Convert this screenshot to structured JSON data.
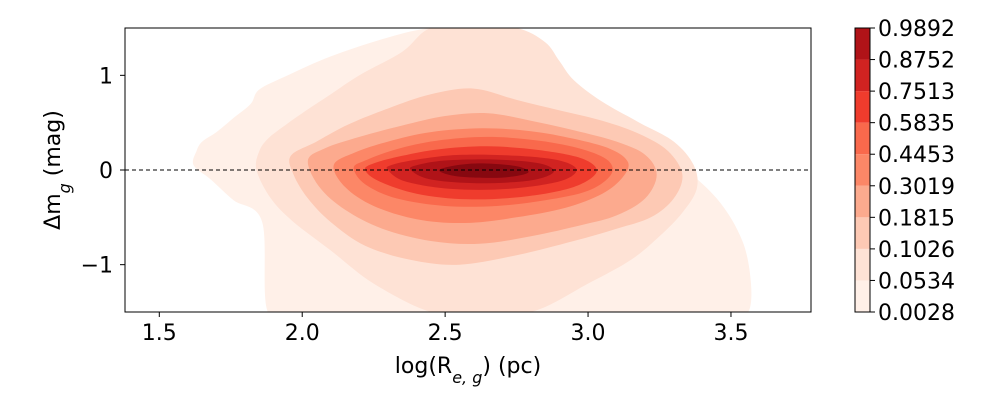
{
  "chart_data": {
    "type": "contour",
    "xlabel": "log(R_{e, g}) (pc)",
    "ylabel": "Δm_g (mag)",
    "xlim": [
      1.38,
      3.78
    ],
    "ylim": [
      -1.5,
      1.5
    ],
    "x_ticks": [
      1.5,
      2.0,
      2.5,
      3.0,
      3.5
    ],
    "x_tick_labels": [
      "1.5",
      "2.0",
      "2.5",
      "3.0",
      "3.5"
    ],
    "y_ticks": [
      1,
      0,
      -1
    ],
    "y_tick_labels": [
      "1",
      "0",
      "−1"
    ],
    "reference_line": {
      "y": 0,
      "style": "dashed"
    },
    "colorbar": {
      "colormap": "Reds",
      "levels": [
        "0.0028",
        "0.0534",
        "0.1026",
        "0.1815",
        "0.3019",
        "0.4453",
        "0.5835",
        "0.7513",
        "0.8752",
        "0.9892"
      ],
      "colors": [
        "#fff0e8",
        "#fee2d5",
        "#fdc9b4",
        "#fcaa8e",
        "#fc8767",
        "#f9694c",
        "#ef3c2d",
        "#d12321",
        "#b01318",
        "#870810"
      ]
    },
    "contours": [
      {
        "level": "0.0028",
        "x": [
          1.63,
          1.62,
          1.68,
          1.76,
          1.86,
          1.88,
          2.0,
          2.2,
          2.4,
          2.5,
          2.7,
          2.95,
          3.05,
          3.2,
          3.24,
          3.34,
          3.44,
          3.5,
          3.56,
          3.57,
          3.54,
          3.45,
          3.3,
          3.1,
          2.9,
          2.75,
          2.6,
          2.45,
          2.3,
          2.1,
          1.95,
          1.85,
          1.82,
          1.76,
          1.7,
          1.65
        ],
        "y": [
          0.2,
          0.05,
          -0.1,
          -0.32,
          -0.55,
          -1.5,
          -1.5,
          -1.5,
          -1.5,
          -1.5,
          -1.5,
          -1.5,
          -1.5,
          -1.5,
          -1.5,
          -1.5,
          -1.5,
          -1.5,
          -1.5,
          -1.2,
          -0.75,
          -0.3,
          0.1,
          0.5,
          0.95,
          1.3,
          1.5,
          1.5,
          1.4,
          1.2,
          1.0,
          0.85,
          0.7,
          0.55,
          0.4,
          0.3
        ]
      },
      {
        "level": "0.0534",
        "x": [
          1.85,
          1.84,
          1.89,
          1.97,
          2.1,
          2.25,
          2.45,
          2.6,
          2.8,
          3.0,
          3.15,
          3.25,
          3.33,
          3.38,
          3.37,
          3.3,
          3.18,
          3.05,
          2.95,
          2.9,
          2.85,
          2.75,
          2.6,
          2.45,
          2.35,
          2.2,
          2.1,
          2.0,
          1.93,
          1.88
        ],
        "y": [
          0.2,
          0.0,
          -0.3,
          -0.55,
          -0.85,
          -1.2,
          -1.5,
          -1.5,
          -1.5,
          -1.2,
          -0.95,
          -0.7,
          -0.45,
          -0.2,
          0.05,
          0.3,
          0.5,
          0.72,
          0.95,
          1.15,
          1.35,
          1.5,
          1.5,
          1.5,
          1.25,
          1.0,
          0.8,
          0.6,
          0.45,
          0.33
        ]
      },
      {
        "level": "0.1026",
        "x": [
          1.96,
          1.97,
          2.02,
          2.1,
          2.22,
          2.38,
          2.55,
          2.75,
          2.95,
          3.1,
          3.22,
          3.3,
          3.33,
          3.28,
          3.18,
          3.05,
          2.9,
          2.75,
          2.6,
          2.45,
          2.3,
          2.16,
          2.05
        ],
        "y": [
          0.15,
          -0.05,
          -0.3,
          -0.55,
          -0.8,
          -0.95,
          -1.0,
          -0.9,
          -0.75,
          -0.62,
          -0.5,
          -0.3,
          -0.05,
          0.2,
          0.38,
          0.52,
          0.63,
          0.74,
          0.86,
          0.8,
          0.65,
          0.48,
          0.3
        ]
      },
      {
        "level": "0.1815",
        "x": [
          2.02,
          2.06,
          2.15,
          2.28,
          2.45,
          2.62,
          2.8,
          2.98,
          3.1,
          3.2,
          3.24,
          3.2,
          3.1,
          2.95,
          2.8,
          2.65,
          2.5,
          2.35,
          2.2,
          2.08
        ],
        "y": [
          0.1,
          -0.18,
          -0.42,
          -0.62,
          -0.75,
          -0.78,
          -0.7,
          -0.58,
          -0.48,
          -0.3,
          -0.05,
          0.16,
          0.3,
          0.42,
          0.52,
          0.6,
          0.57,
          0.47,
          0.35,
          0.23
        ]
      },
      {
        "level": "0.3019",
        "x": [
          2.11,
          2.15,
          2.25,
          2.4,
          2.57,
          2.75,
          2.92,
          3.05,
          3.12,
          3.14,
          3.08,
          2.95,
          2.8,
          2.63,
          2.45,
          2.3,
          2.18
        ],
        "y": [
          0.05,
          -0.18,
          -0.38,
          -0.52,
          -0.56,
          -0.5,
          -0.4,
          -0.25,
          -0.08,
          0.08,
          0.22,
          0.33,
          0.41,
          0.44,
          0.4,
          0.3,
          0.18
        ]
      },
      {
        "level": "0.4453",
        "x": [
          2.18,
          2.22,
          2.33,
          2.5,
          2.68,
          2.85,
          3.0,
          3.08,
          3.07,
          2.98,
          2.83,
          2.65,
          2.47,
          2.33,
          2.22
        ],
        "y": [
          0.02,
          -0.15,
          -0.3,
          -0.38,
          -0.38,
          -0.32,
          -0.22,
          -0.05,
          0.1,
          0.22,
          0.31,
          0.35,
          0.31,
          0.22,
          0.1
        ]
      },
      {
        "level": "0.5835",
        "x": [
          2.22,
          2.27,
          2.4,
          2.58,
          2.78,
          2.95,
          3.03,
          2.98,
          2.83,
          2.65,
          2.48,
          2.35,
          2.25
        ],
        "y": [
          0.0,
          -0.12,
          -0.25,
          -0.31,
          -0.28,
          -0.18,
          -0.02,
          0.12,
          0.21,
          0.25,
          0.22,
          0.15,
          0.07
        ]
      },
      {
        "level": "0.7513",
        "x": [
          2.3,
          2.36,
          2.52,
          2.72,
          2.9,
          2.96,
          2.9,
          2.75,
          2.55,
          2.4,
          2.31
        ],
        "y": [
          0.0,
          -0.12,
          -0.2,
          -0.2,
          -0.12,
          0.0,
          0.1,
          0.15,
          0.16,
          0.11,
          0.05
        ]
      },
      {
        "level": "0.8752",
        "x": [
          2.38,
          2.45,
          2.62,
          2.8,
          2.88,
          2.83,
          2.68,
          2.5,
          2.4
        ],
        "y": [
          0.0,
          -0.1,
          -0.14,
          -0.11,
          -0.02,
          0.07,
          0.11,
          0.1,
          0.05
        ]
      },
      {
        "level": "0.9892",
        "x": [
          2.48,
          2.55,
          2.7,
          2.79,
          2.75,
          2.62,
          2.52
        ],
        "y": [
          -0.01,
          -0.07,
          -0.08,
          -0.03,
          0.04,
          0.07,
          0.04
        ]
      }
    ]
  }
}
